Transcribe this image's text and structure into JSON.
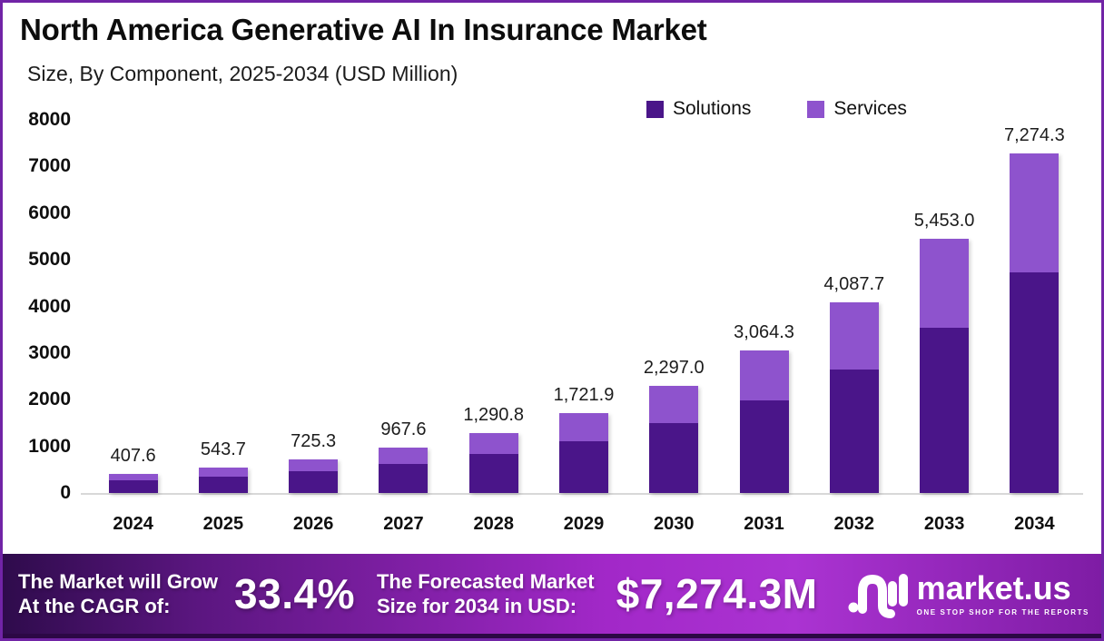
{
  "page": {
    "title": "North America Generative AI In Insurance Market",
    "subtitle": "Size, By Component, 2025-2034 (USD Million)"
  },
  "legend": [
    {
      "label": "Solutions",
      "color": "#4A1589"
    },
    {
      "label": "Services",
      "color": "#8E53CD"
    }
  ],
  "chart_data": {
    "type": "bar",
    "stacked": true,
    "title": "North America Generative AI In Insurance Market",
    "subtitle": "Size, By Component, 2025-2034 (USD Million)",
    "xlabel": "",
    "ylabel": "",
    "ylim": [
      0,
      8000
    ],
    "yticks": [
      0,
      1000,
      2000,
      3000,
      4000,
      5000,
      6000,
      7000,
      8000
    ],
    "grid": false,
    "legend_position": "top-right",
    "categories": [
      "2024",
      "2025",
      "2026",
      "2027",
      "2028",
      "2029",
      "2030",
      "2031",
      "2032",
      "2033",
      "2034"
    ],
    "totals": [
      407.6,
      543.7,
      725.3,
      967.6,
      1290.8,
      1721.9,
      2297.0,
      3064.3,
      4087.7,
      5453.0,
      7274.3
    ],
    "total_labels": [
      "407.6",
      "543.7",
      "725.3",
      "967.6",
      "1,290.8",
      "1,721.9",
      "2,297.0",
      "3,064.3",
      "4,087.7",
      "5,453.0",
      "7,274.3"
    ],
    "series": [
      {
        "name": "Solutions",
        "color": "#4A1589",
        "values": [
          265.0,
          353.4,
          471.4,
          629.0,
          839.0,
          1119.2,
          1493.0,
          1991.8,
          2657.0,
          3544.5,
          4728.3
        ]
      },
      {
        "name": "Services",
        "color": "#8E53CD",
        "values": [
          142.6,
          190.3,
          253.9,
          338.6,
          451.8,
          602.7,
          804.0,
          1072.5,
          1430.7,
          1908.5,
          2546.0
        ]
      }
    ]
  },
  "footer": {
    "growth_label_line1": "The Market will Grow",
    "growth_label_line2": "At the CAGR of:",
    "cagr_value": "33.4%",
    "forecast_label_line1": "The Forecasted Market",
    "forecast_label_line2": "Size for 2034 in USD:",
    "forecast_value": "$7,274.3M",
    "logo_text": "market.us",
    "logo_tagline": "ONE STOP SHOP FOR THE REPORTS"
  },
  "colors": {
    "solutions": "#4A1589",
    "services": "#8E53CD",
    "page_border": "#7124A6",
    "banner_gradient_left": "#2E0B4B",
    "banner_gradient_mid": "#A228C8",
    "banner_gradient_right": "#7E1CA4",
    "banner_bottom_strip": "#2C0845",
    "axis_line": "#D8D8D8"
  }
}
